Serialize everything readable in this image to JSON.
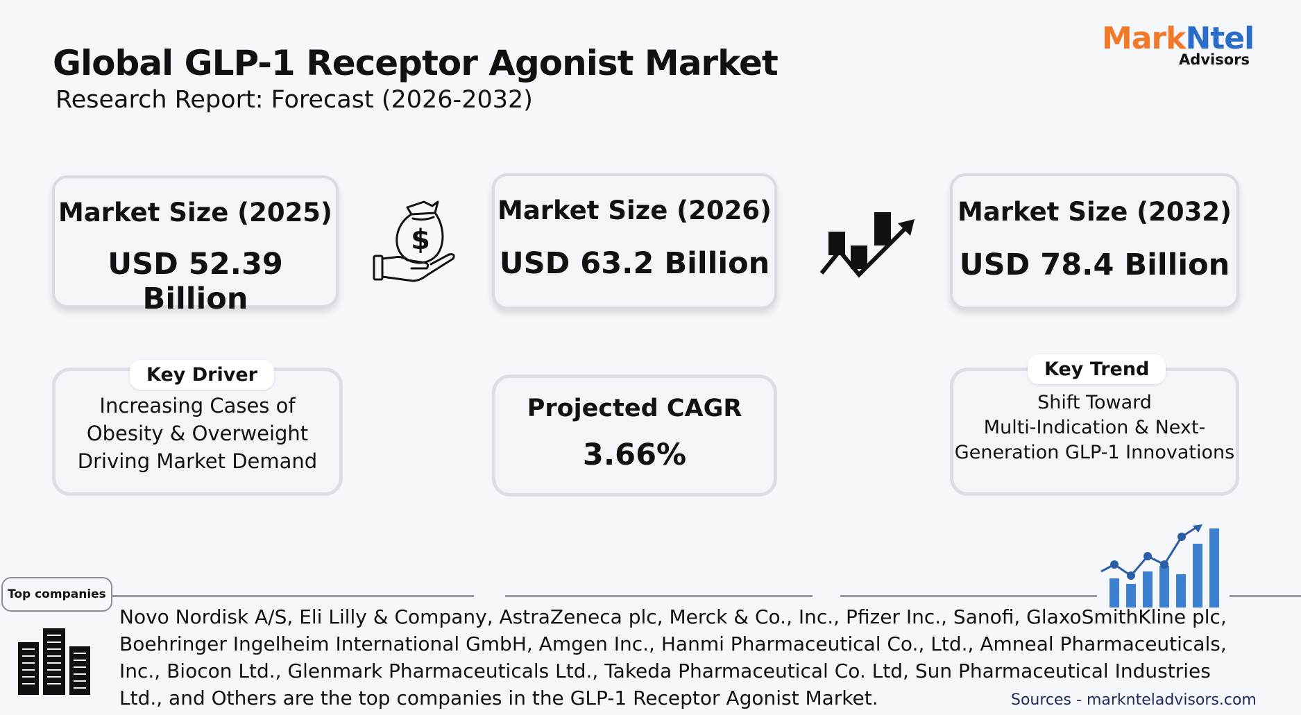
{
  "header": {
    "title": "Global GLP-1 Receptor Agonist Market",
    "subtitle": "Research Report: Forecast (2026-2032)"
  },
  "logo": {
    "mark": "Mark",
    "ntel": "Ntel",
    "sub": "Advisors",
    "colors": {
      "mark": "#f2792a",
      "ntel": "#2b6cc9"
    }
  },
  "market_sizes": [
    {
      "label": "Market Size (2025)",
      "value": "USD 52.39 Billion"
    },
    {
      "label": "Market Size (2026)",
      "value": "USD 63.2 Billion"
    },
    {
      "label": "Market Size (2032)",
      "value": "USD 78.4 Billion"
    }
  ],
  "key_driver": {
    "label": "Key Driver",
    "lines": [
      "Increasing Cases of",
      "Obesity & Overweight",
      "Driving Market Demand"
    ]
  },
  "cagr": {
    "label": "Projected CAGR",
    "value": "3.66%"
  },
  "key_trend": {
    "label": "Key Trend",
    "lines": [
      "Shift Toward",
      "Multi-Indication & Next-",
      "Generation GLP-1 Innovations"
    ]
  },
  "top_companies": {
    "tag": "Top companies",
    "lines": [
      "Novo Nordisk A/S, Eli Lilly & Company, AstraZeneca plc, Merck & Co., Inc., Pfizer Inc., Sanofi, GlaxoSmithKline plc,",
      "Boehringer Ingelheim International GmbH, Amgen Inc., Hanmi Pharmaceutical Co., Ltd., Amneal Pharmaceuticals,",
      "Inc., Biocon Ltd., Glenmark Pharmaceuticals Ltd., Takeda Pharmaceutical Co. Ltd, Sun Pharmaceutical Industries",
      "Ltd., and Others are the top companies in the GLP-1 Receptor Agonist Market."
    ]
  },
  "sources": "Sources - marknteladvisors.com",
  "icons": [
    "money-bag-hand-icon",
    "growth-chart-arrow-icon",
    "bar-growth-icon",
    "buildings-icon"
  ]
}
